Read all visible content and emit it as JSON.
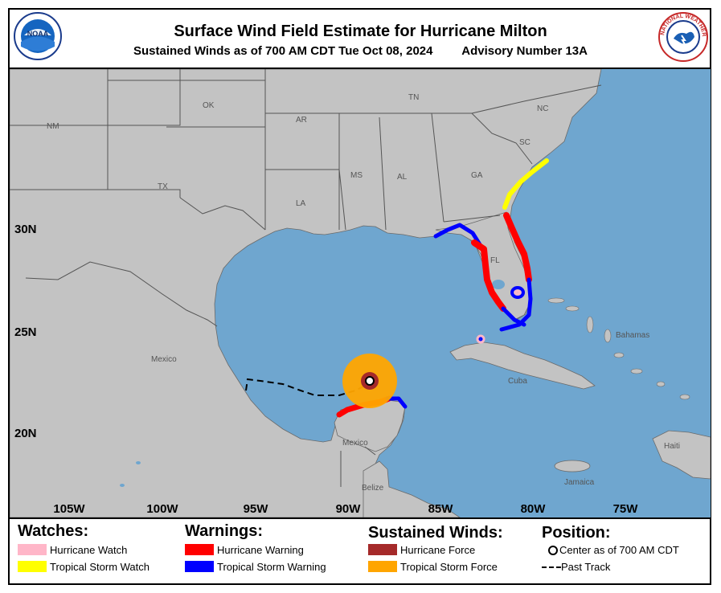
{
  "header": {
    "title": "Surface Wind Field Estimate for Hurricane Milton",
    "subtitle_left": "Sustained Winds as of 700 AM CDT Tue Oct 08, 2024",
    "subtitle_right": "Advisory Number 13A",
    "left_logo": "NOAA",
    "right_logo": "NATIONAL WEATHER SERVICE"
  },
  "map": {
    "lon_labels": [
      "105W",
      "100W",
      "95W",
      "90W",
      "85W",
      "80W",
      "75W"
    ],
    "lat_labels": [
      "30N",
      "25N",
      "20N"
    ],
    "region_labels": {
      "nm": "NM",
      "ok": "OK",
      "ar": "AR",
      "tn": "TN",
      "nc": "NC",
      "sc": "SC",
      "tx": "TX",
      "ms": "MS",
      "al": "AL",
      "ga": "GA",
      "la": "LA",
      "fl": "FL",
      "mexico1": "Mexico",
      "mexico2": "Mexico",
      "cuba": "Cuba",
      "bahamas": "Bahamas",
      "belize": "Belize",
      "haiti": "Haiti",
      "jamaica": "Jamaica"
    },
    "colors": {
      "ocean": "#6fa6cf",
      "land": "#c3c3c3",
      "border": "#5a5a5a",
      "hurricane_warning": "#ff0000",
      "tropical_storm_warning": "#0000ff",
      "hurricane_watch": "#ffb6c8",
      "tropical_storm_watch": "#ffff00",
      "hurricane_force": "#a52a2a",
      "tropical_storm_force": "#ffa500"
    }
  },
  "legend": {
    "watches": {
      "heading": "Watches:",
      "items": [
        "Hurricane Watch",
        "Tropical Storm Watch"
      ]
    },
    "warnings": {
      "heading": "Warnings:",
      "items": [
        "Hurricane Warning",
        "Tropical Storm Warning"
      ]
    },
    "winds": {
      "heading": "Sustained Winds:",
      "items": [
        "Hurricane Force",
        "Tropical Storm Force"
      ]
    },
    "position": {
      "heading": "Position:",
      "items": [
        "Center as of 700 AM CDT",
        "Past Track"
      ]
    }
  }
}
